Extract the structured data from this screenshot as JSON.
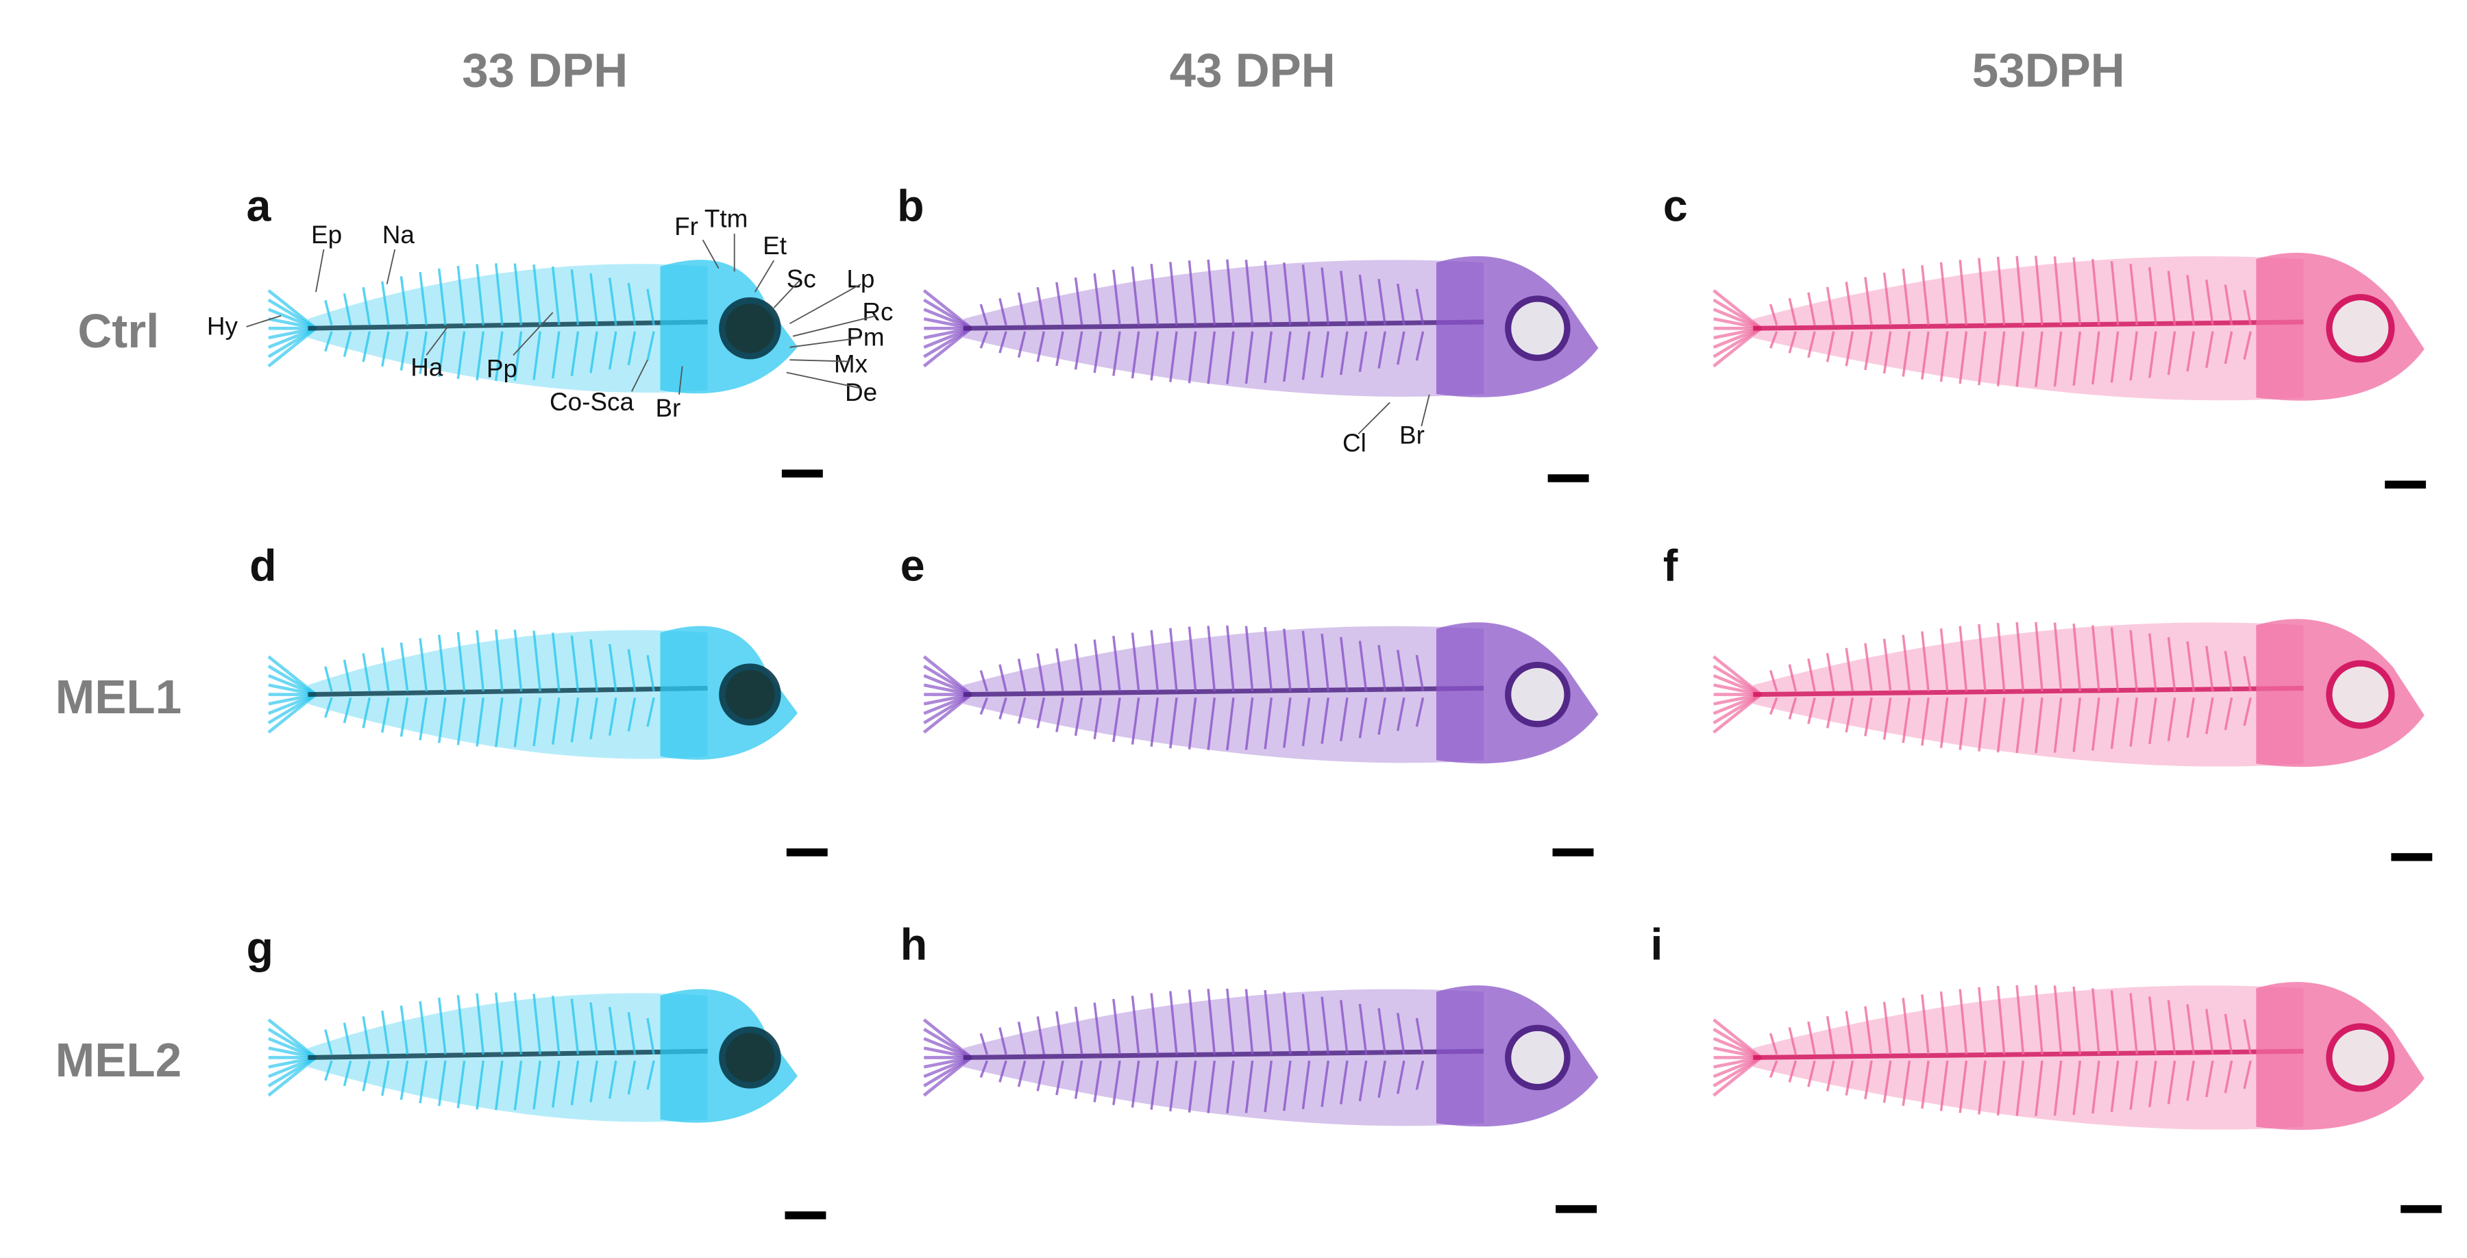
{
  "columns": [
    "33 DPH",
    "43 DPH",
    "53DPH"
  ],
  "rows": [
    "Ctrl",
    "MEL1",
    "MEL2"
  ],
  "panels": [
    "a",
    "b",
    "c",
    "d",
    "e",
    "f",
    "g",
    "h",
    "i"
  ],
  "annotations_a": [
    "Ep",
    "Na",
    "Hy",
    "Ha",
    "Pp",
    "Co-Sca",
    "Br",
    "Fr",
    "Ttm",
    "Et",
    "Sc",
    "Lp",
    "Rc",
    "Pm",
    "Mx",
    "De"
  ],
  "annotations_b": [
    "Cl",
    "Br"
  ]
}
